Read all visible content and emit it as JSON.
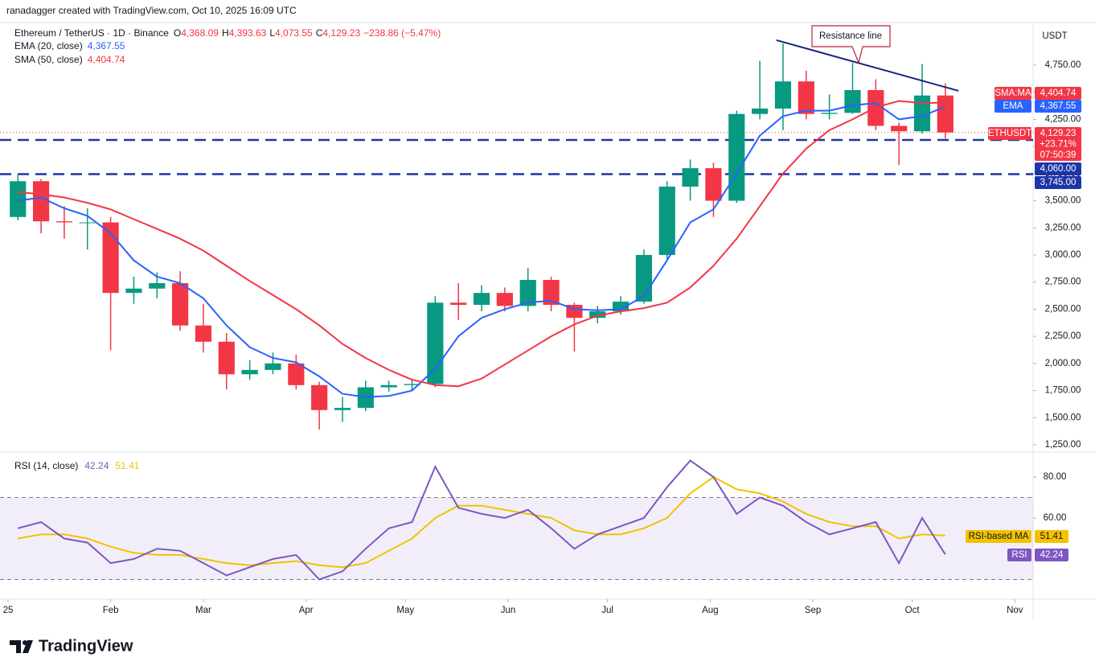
{
  "header": {
    "attribution": "ranadagger created with TradingView.com, Oct 10, 2025 16:09 UTC",
    "logo": "TradingView"
  },
  "chart_data": [
    {
      "type": "candlestick",
      "title": "Ethereum / TetherUS · 1D · Binance",
      "ohlc_legend": [
        {
          "label": "O",
          "value": "4,368.09"
        },
        {
          "label": "H",
          "value": "4,393.63"
        },
        {
          "label": "L",
          "value": "4,073.55"
        },
        {
          "label": "C",
          "value": "4,129.23"
        }
      ],
      "change": "−238.86 (−5.47%)",
      "axis_unit": "USDT",
      "x": [
        3,
        10,
        17,
        24,
        31,
        38,
        45,
        52,
        59,
        66,
        73,
        80,
        87,
        94,
        101,
        108,
        115,
        122,
        129,
        136,
        143,
        150,
        157,
        164,
        171,
        178,
        185,
        192,
        199,
        206,
        213,
        220,
        227,
        234,
        241,
        248,
        255,
        262,
        269,
        276,
        283
      ],
      "xlim": [
        -2.4,
        309.5
      ],
      "xticks": [
        {
          "value": 0,
          "label": "25"
        },
        {
          "value": 31,
          "label": "Feb"
        },
        {
          "value": 59,
          "label": "Mar"
        },
        {
          "value": 90,
          "label": "Apr"
        },
        {
          "value": 120,
          "label": "May"
        },
        {
          "value": 151,
          "label": "Jun"
        },
        {
          "value": 181,
          "label": "Jul"
        },
        {
          "value": 212,
          "label": "Aug"
        },
        {
          "value": 243,
          "label": "Sep"
        },
        {
          "value": 273,
          "label": "Oct"
        },
        {
          "value": 304,
          "label": "Nov"
        }
      ],
      "ylim": [
        1198,
        5128
      ],
      "yticks": [
        {
          "value": 1250,
          "label": "1,250.00"
        },
        {
          "value": 1500,
          "label": "1,500.00"
        },
        {
          "value": 1750,
          "label": "1,750.00"
        },
        {
          "value": 2000,
          "label": "2,000.00"
        },
        {
          "value": 2250,
          "label": "2,250.00"
        },
        {
          "value": 2500,
          "label": "2,500.00"
        },
        {
          "value": 2750,
          "label": "2,750.00"
        },
        {
          "value": 3000,
          "label": "3,000.00"
        },
        {
          "value": 3250,
          "label": "3,250.00"
        },
        {
          "value": 3500,
          "label": "3,500.00"
        },
        {
          "value": 3750,
          "label": "3,750.00"
        },
        {
          "value": 4000,
          "label": "4,000.00"
        },
        {
          "value": 4250,
          "label": "4,250.00"
        },
        {
          "value": 4500,
          "label": "4,500.00"
        },
        {
          "value": 4750,
          "label": "4,750.00"
        }
      ],
      "open": [
        3350,
        3680,
        3310,
        3300,
        3300,
        2650,
        2690,
        2740,
        2350,
        2200,
        1900,
        1940,
        2000,
        1800,
        1570,
        1590,
        1780,
        1800,
        1810,
        2560,
        2540,
        2650,
        2530,
        2770,
        2540,
        2420,
        2480,
        2570,
        3000,
        3630,
        3800,
        3500,
        4300,
        4350,
        4600,
        4300,
        4310,
        4520,
        4190,
        4140,
        4470
      ],
      "high": [
        3745,
        3700,
        3450,
        3430,
        3350,
        2800,
        2840,
        2850,
        2550,
        2280,
        2030,
        2100,
        2080,
        1830,
        1690,
        1840,
        1840,
        1860,
        2620,
        2740,
        2720,
        2700,
        2880,
        2800,
        2560,
        2530,
        2620,
        3050,
        3680,
        3880,
        3850,
        4330,
        4790,
        4950,
        4700,
        4480,
        4770,
        4620,
        4220,
        4760,
        4580
      ],
      "low": [
        3320,
        3200,
        3150,
        3050,
        2120,
        2550,
        2600,
        2300,
        2100,
        1760,
        1850,
        1900,
        1760,
        1390,
        1460,
        1560,
        1740,
        1750,
        1780,
        2400,
        2480,
        2480,
        2480,
        2480,
        2110,
        2370,
        2450,
        2550,
        2950,
        3500,
        3350,
        3480,
        4250,
        4150,
        4250,
        4250,
        4300,
        4150,
        3830,
        4120,
        4073.55
      ],
      "close": [
        3680,
        3310,
        3300,
        3300,
        2650,
        2690,
        2740,
        2350,
        2200,
        1900,
        1940,
        2000,
        1800,
        1570,
        1590,
        1780,
        1800,
        1810,
        2560,
        2540,
        2650,
        2530,
        2770,
        2540,
        2420,
        2480,
        2570,
        3000,
        3630,
        3800,
        3500,
        4300,
        4350,
        4600,
        4300,
        4310,
        4520,
        4190,
        4140,
        4470,
        4129.23
      ],
      "up_color": "#089981",
      "down_color": "#f23645",
      "series": [
        {
          "name": "EMA (20, close)",
          "tag": "EMA",
          "color": "#2962ff",
          "legend_value": "4,367.55",
          "values": [
            3500,
            3530,
            3430,
            3360,
            3200,
            2950,
            2800,
            2740,
            2600,
            2350,
            2150,
            2050,
            2010,
            1880,
            1720,
            1690,
            1700,
            1750,
            1950,
            2250,
            2420,
            2500,
            2560,
            2580,
            2500,
            2490,
            2500,
            2620,
            2950,
            3300,
            3420,
            3750,
            4100,
            4280,
            4330,
            4330,
            4380,
            4400,
            4250,
            4280,
            4367.55
          ]
        },
        {
          "name": "SMA (50, close)",
          "tag": "SMA:MA",
          "color": "#f23645",
          "legend_value": "4,404.74",
          "values": [
            3580,
            3560,
            3530,
            3480,
            3420,
            3330,
            3240,
            3150,
            3040,
            2900,
            2760,
            2630,
            2500,
            2350,
            2180,
            2050,
            1940,
            1850,
            1800,
            1790,
            1860,
            1990,
            2120,
            2250,
            2360,
            2440,
            2480,
            2510,
            2560,
            2700,
            2900,
            3150,
            3450,
            3750,
            3980,
            4150,
            4250,
            4360,
            4420,
            4400,
            4404.74
          ]
        }
      ],
      "last_price": {
        "tag": "ETHUSDT",
        "value": 4129.23,
        "label": "4,129.23",
        "change": "+23.71%",
        "countdown": "07:50:39"
      },
      "hlines": [
        {
          "value": 4060,
          "label": "4,060.00"
        },
        {
          "value": 3745,
          "label": "3,745.00"
        }
      ],
      "hline_color": "#1e35a8",
      "trendline": {
        "x": [
          232,
          287
        ],
        "y": [
          4980,
          4513
        ],
        "label": "Resistance line",
        "color": "#1a237e"
      }
    },
    {
      "type": "line",
      "title": "RSI (14, close)",
      "x": [
        3,
        10,
        17,
        24,
        31,
        38,
        45,
        52,
        59,
        66,
        73,
        80,
        87,
        94,
        101,
        108,
        115,
        122,
        129,
        136,
        143,
        150,
        157,
        164,
        171,
        178,
        185,
        192,
        199,
        206,
        213,
        220,
        227,
        234,
        241,
        248,
        255,
        262,
        269,
        276,
        283
      ],
      "xlim": [
        -2.4,
        309.5
      ],
      "ylim": [
        20.4,
        91
      ],
      "yticks": [
        {
          "value": 80,
          "label": "80.00"
        },
        {
          "value": 60,
          "label": "60.00"
        }
      ],
      "bands": [
        30,
        70
      ],
      "series": [
        {
          "name": "RSI",
          "color": "#7e57c2",
          "legend_value": "42.24",
          "values": [
            55,
            58,
            50,
            48,
            38,
            40,
            45,
            44,
            38,
            32,
            36,
            40,
            42,
            30,
            34,
            45,
            55,
            58,
            85,
            65,
            62,
            60,
            64,
            55,
            45,
            52,
            56,
            60,
            75,
            88,
            80,
            62,
            70,
            66,
            58,
            52,
            55,
            58,
            38,
            60,
            42.24
          ]
        },
        {
          "name": "RSI-based MA",
          "color": "#f2c200",
          "legend_value": "51.41",
          "values": [
            50,
            52,
            52,
            50,
            46,
            43,
            42,
            42,
            40,
            38,
            37,
            38,
            39,
            37,
            36,
            38,
            44,
            50,
            60,
            66,
            66,
            64,
            62,
            60,
            54,
            52,
            52,
            55,
            60,
            72,
            80,
            74,
            72,
            68,
            62,
            58,
            56,
            56,
            50,
            52,
            51.41
          ]
        }
      ]
    }
  ]
}
